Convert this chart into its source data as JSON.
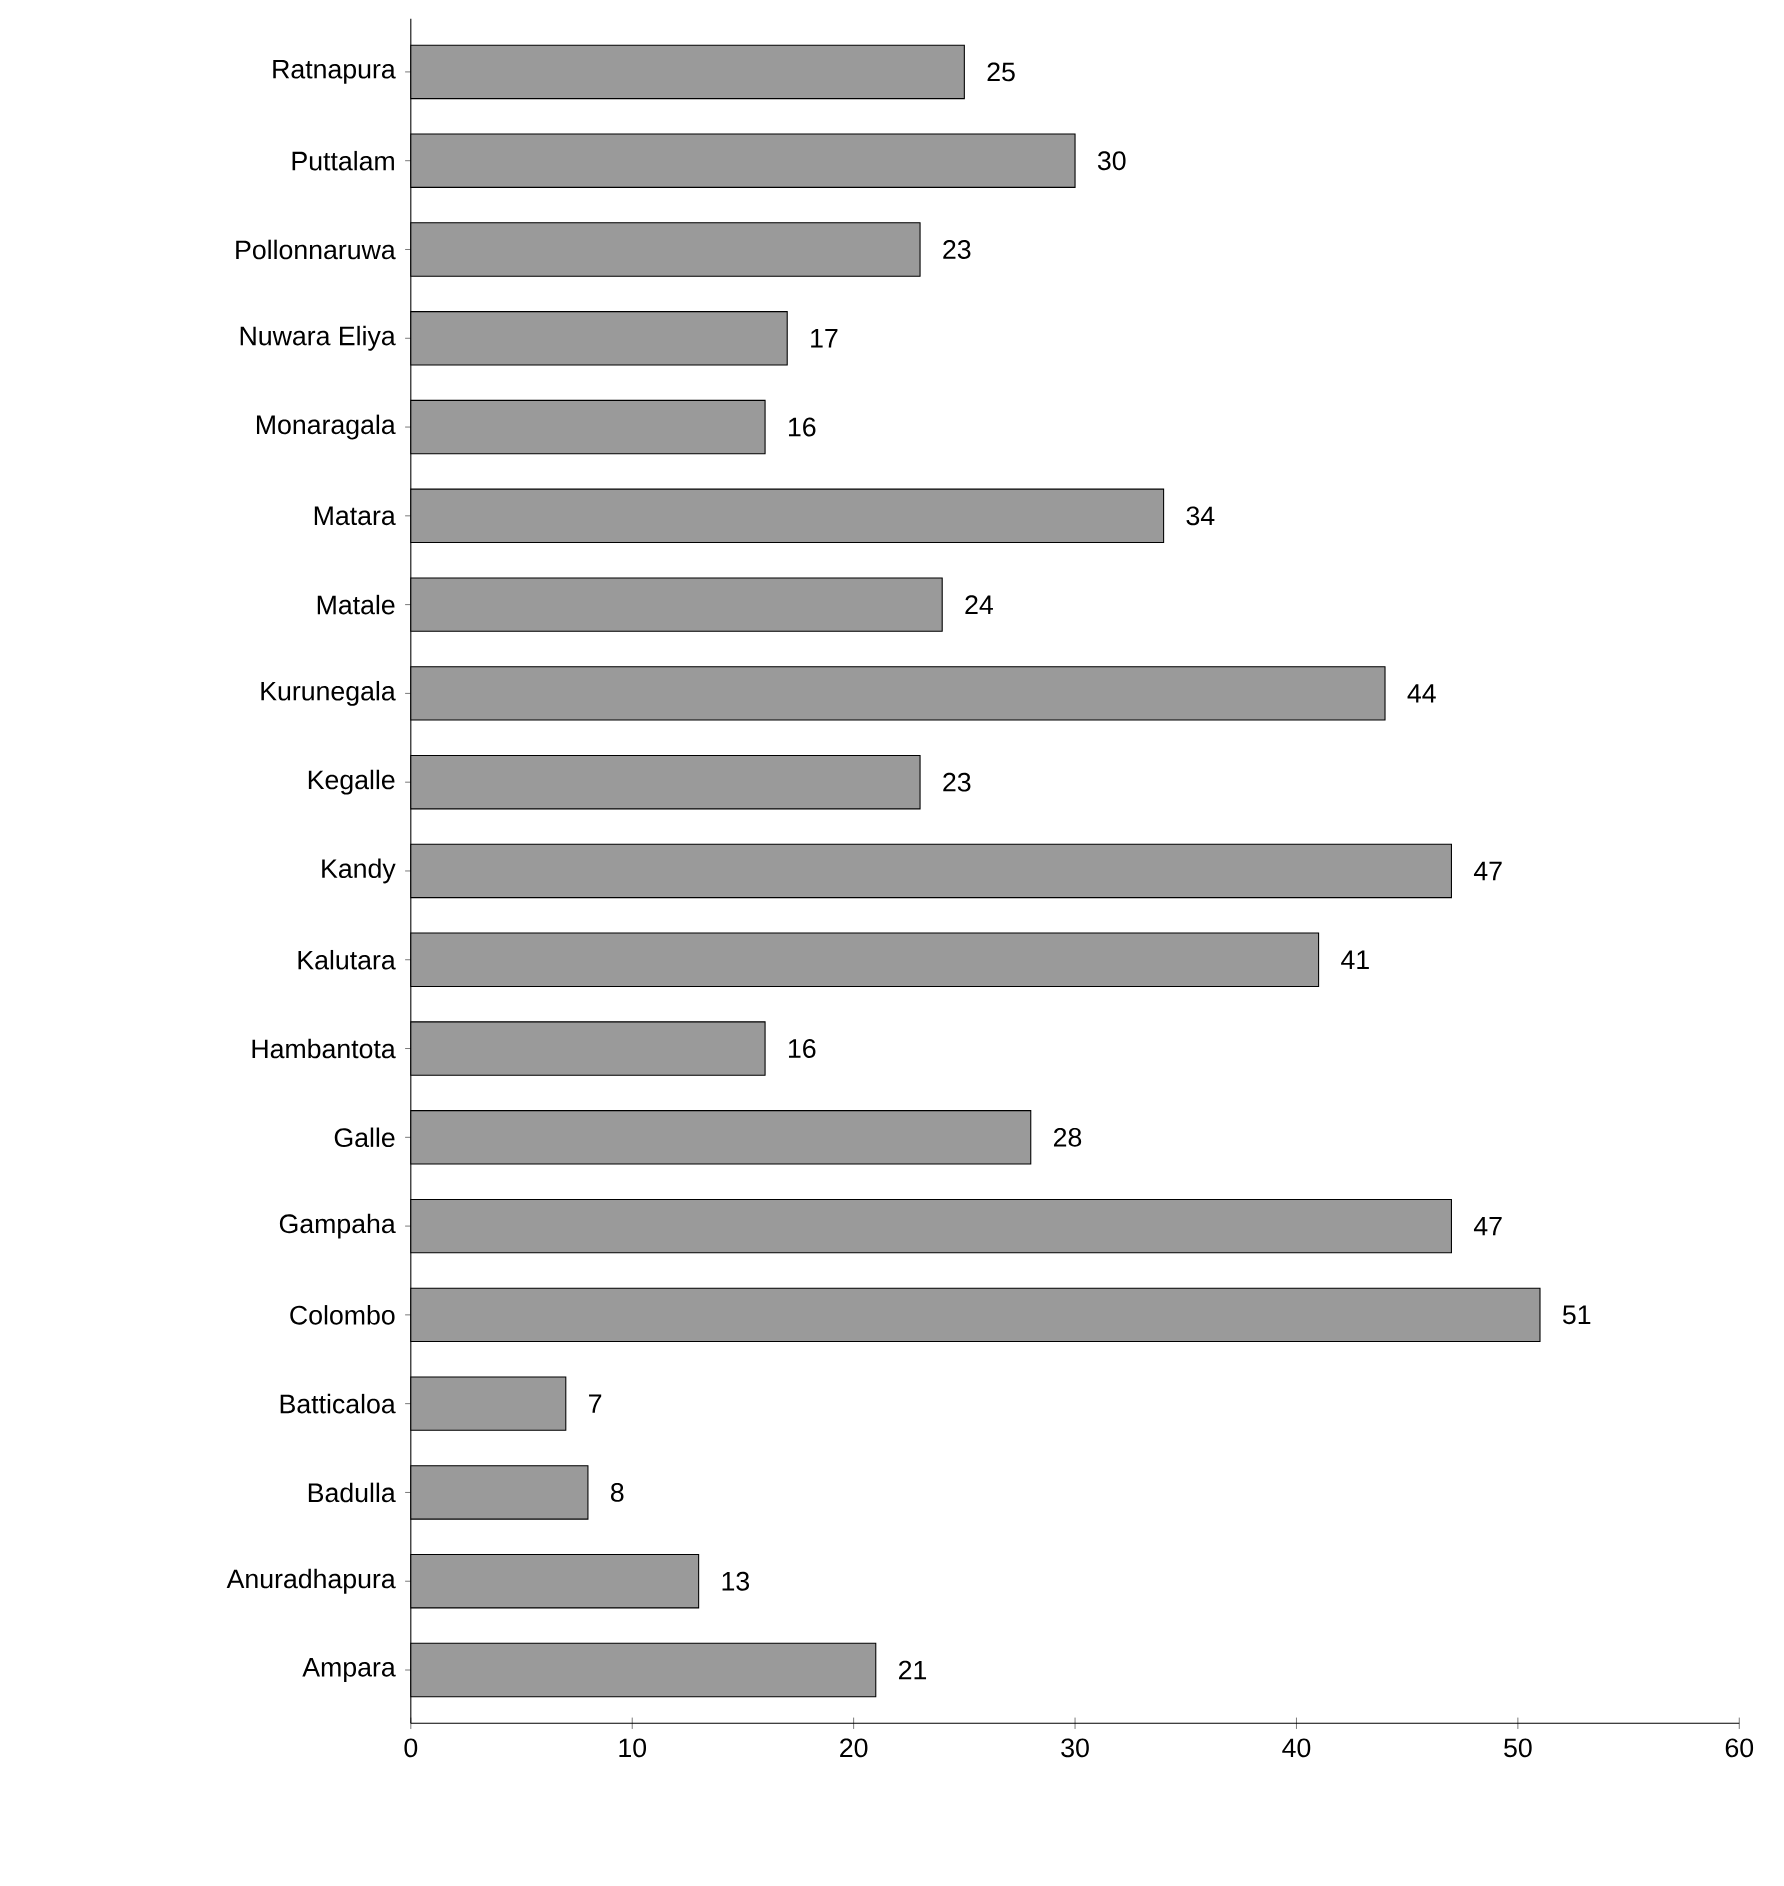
{
  "chart_data": {
    "type": "bar",
    "orientation": "horizontal",
    "categories": [
      "Ratnapura",
      "Puttalam",
      "Pollonnaruwa",
      "Nuwara Eliya",
      "Monaragala",
      "Matara",
      "Matale",
      "Kurunegala",
      "Kegalle",
      "Kandy",
      "Kalutara",
      "Hambantota",
      "Galle",
      "Gampaha",
      "Colombo",
      "Batticaloa",
      "Badulla",
      "Anuradhapura",
      "Ampara"
    ],
    "values": [
      25,
      30,
      23,
      17,
      16,
      34,
      24,
      44,
      23,
      47,
      41,
      16,
      28,
      47,
      51,
      7,
      8,
      13,
      21
    ],
    "color": "#9a9a9a",
    "data_labels": true,
    "grid": false,
    "xlim": [
      0,
      60
    ],
    "xticks": [
      0,
      10,
      20,
      30,
      40,
      50,
      60
    ]
  }
}
